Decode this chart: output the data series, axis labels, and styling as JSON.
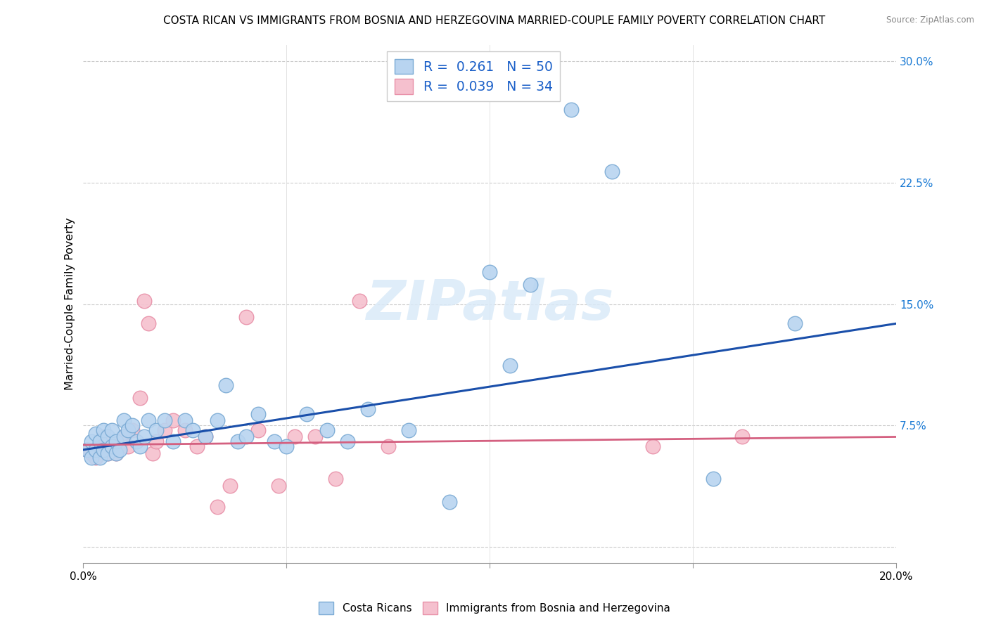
{
  "title": "COSTA RICAN VS IMMIGRANTS FROM BOSNIA AND HERZEGOVINA MARRIED-COUPLE FAMILY POVERTY CORRELATION CHART",
  "source": "Source: ZipAtlas.com",
  "ylabel": "Married-Couple Family Poverty",
  "xlim": [
    0.0,
    0.2
  ],
  "ylim": [
    -0.01,
    0.31
  ],
  "ytick_labels_right": [
    "30.0%",
    "22.5%",
    "15.0%",
    "7.5%",
    ""
  ],
  "yticks_right": [
    0.3,
    0.225,
    0.15,
    0.075,
    0.0
  ],
  "blue_R": 0.261,
  "blue_N": 50,
  "pink_R": 0.039,
  "pink_N": 34,
  "blue_scatter_color_face": "#b8d4f0",
  "blue_scatter_color_edge": "#7aaad4",
  "pink_scatter_color_face": "#f5c0ce",
  "pink_scatter_color_edge": "#e890a8",
  "line_blue": "#1a4faa",
  "line_pink": "#d46080",
  "legend_text_color": "#1a5fc8",
  "watermark_text": "ZIPatlas",
  "watermark_color": "#daeaf8",
  "blue_scatter_x": [
    0.001,
    0.002,
    0.002,
    0.003,
    0.003,
    0.004,
    0.004,
    0.005,
    0.005,
    0.006,
    0.006,
    0.007,
    0.007,
    0.008,
    0.008,
    0.009,
    0.01,
    0.01,
    0.011,
    0.012,
    0.013,
    0.014,
    0.015,
    0.016,
    0.018,
    0.02,
    0.022,
    0.025,
    0.027,
    0.03,
    0.033,
    0.035,
    0.038,
    0.04,
    0.043,
    0.047,
    0.05,
    0.055,
    0.06,
    0.065,
    0.07,
    0.08,
    0.09,
    0.1,
    0.105,
    0.11,
    0.12,
    0.13,
    0.155,
    0.175
  ],
  "blue_scatter_y": [
    0.06,
    0.065,
    0.055,
    0.06,
    0.07,
    0.055,
    0.065,
    0.06,
    0.072,
    0.058,
    0.068,
    0.062,
    0.072,
    0.058,
    0.065,
    0.06,
    0.068,
    0.078,
    0.072,
    0.075,
    0.065,
    0.062,
    0.068,
    0.078,
    0.072,
    0.078,
    0.065,
    0.078,
    0.072,
    0.068,
    0.078,
    0.1,
    0.065,
    0.068,
    0.082,
    0.065,
    0.062,
    0.082,
    0.072,
    0.065,
    0.085,
    0.072,
    0.028,
    0.17,
    0.112,
    0.162,
    0.27,
    0.232,
    0.042,
    0.138
  ],
  "pink_scatter_x": [
    0.001,
    0.002,
    0.003,
    0.004,
    0.005,
    0.006,
    0.007,
    0.008,
    0.009,
    0.01,
    0.011,
    0.012,
    0.014,
    0.015,
    0.016,
    0.017,
    0.018,
    0.02,
    0.022,
    0.025,
    0.028,
    0.03,
    0.033,
    0.036,
    0.04,
    0.043,
    0.048,
    0.052,
    0.057,
    0.062,
    0.068,
    0.075,
    0.14,
    0.162
  ],
  "pink_scatter_y": [
    0.06,
    0.058,
    0.055,
    0.062,
    0.068,
    0.058,
    0.062,
    0.058,
    0.063,
    0.068,
    0.062,
    0.072,
    0.092,
    0.152,
    0.138,
    0.058,
    0.065,
    0.072,
    0.078,
    0.072,
    0.062,
    0.068,
    0.025,
    0.038,
    0.142,
    0.072,
    0.038,
    0.068,
    0.068,
    0.042,
    0.152,
    0.062,
    0.062,
    0.068
  ],
  "blue_line_x0": 0.0,
  "blue_line_y0": 0.06,
  "blue_line_x1": 0.2,
  "blue_line_y1": 0.138,
  "pink_line_x0": 0.0,
  "pink_line_y0": 0.063,
  "pink_line_x1": 0.2,
  "pink_line_y1": 0.068
}
